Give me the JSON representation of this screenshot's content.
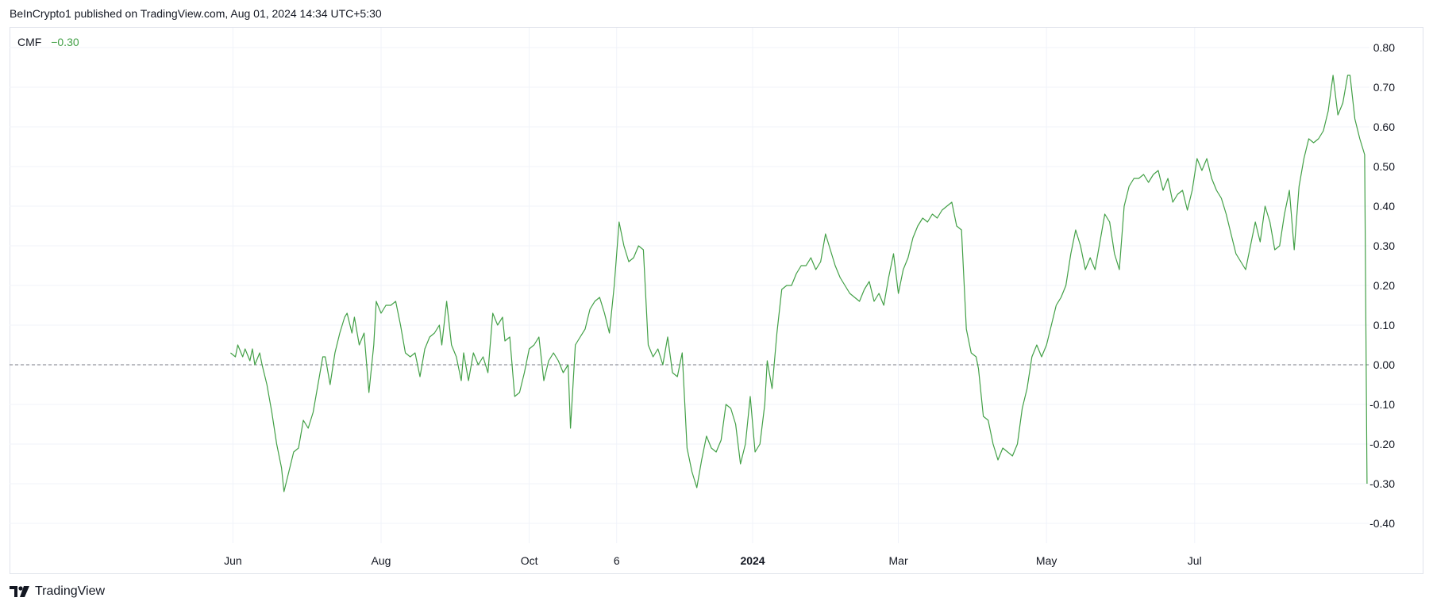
{
  "header": {
    "published_text": "BeInCrypto1 published on TradingView.com, Aug 01, 2024 14:34 UTC+5:30"
  },
  "indicator": {
    "name": "CMF",
    "value": "−0.30",
    "line_color": "#43a047"
  },
  "footer": {
    "brand": "TradingView"
  },
  "colors": {
    "line": "#43a047",
    "grid": "#f0f3fa",
    "zero_line": "#787b86",
    "text": "#131722"
  },
  "chart_data": {
    "type": "line",
    "title": "",
    "xlabel": "",
    "ylabel": "",
    "ylim": [
      -0.45,
      0.85
    ],
    "y_ticks": [
      "0.80",
      "0.70",
      "0.60",
      "0.50",
      "0.40",
      "0.30",
      "0.20",
      "0.10",
      "0.00",
      "-0.10",
      "-0.20",
      "-0.30",
      "-0.40"
    ],
    "x_ticks": [
      {
        "label": "Jun",
        "date": "2023-06-01",
        "bold": false
      },
      {
        "label": "Aug",
        "date": "2023-08-01",
        "bold": false
      },
      {
        "label": "Oct",
        "date": "2023-10-01",
        "bold": false
      },
      {
        "label": "6",
        "date": "2023-11-06",
        "bold": false
      },
      {
        "label": "2024",
        "date": "2024-01-01",
        "bold": true
      },
      {
        "label": "Mar",
        "date": "2024-03-01",
        "bold": false
      },
      {
        "label": "May",
        "date": "2024-05-01",
        "bold": false
      },
      {
        "label": "Jul",
        "date": "2024-07-01",
        "bold": false
      }
    ],
    "x_range": [
      "2023-03-01",
      "2024-09-11"
    ],
    "zero_line": "dashed",
    "grid": true,
    "series": [
      {
        "name": "CMF",
        "points": [
          [
            "2023-05-31",
            0.03
          ],
          [
            "2023-06-02",
            0.02
          ],
          [
            "2023-06-03",
            0.05
          ],
          [
            "2023-06-05",
            0.02
          ],
          [
            "2023-06-06",
            0.04
          ],
          [
            "2023-06-08",
            0.01
          ],
          [
            "2023-06-09",
            0.04
          ],
          [
            "2023-06-10",
            0.0
          ],
          [
            "2023-06-12",
            0.03
          ],
          [
            "2023-06-13",
            0.0
          ],
          [
            "2023-06-15",
            -0.05
          ],
          [
            "2023-06-17",
            -0.12
          ],
          [
            "2023-06-19",
            -0.2
          ],
          [
            "2023-06-21",
            -0.26
          ],
          [
            "2023-06-22",
            -0.32
          ],
          [
            "2023-06-24",
            -0.27
          ],
          [
            "2023-06-26",
            -0.22
          ],
          [
            "2023-06-28",
            -0.21
          ],
          [
            "2023-06-30",
            -0.14
          ],
          [
            "2023-07-02",
            -0.16
          ],
          [
            "2023-07-04",
            -0.12
          ],
          [
            "2023-07-06",
            -0.05
          ],
          [
            "2023-07-08",
            0.02
          ],
          [
            "2023-07-09",
            0.02
          ],
          [
            "2023-07-11",
            -0.05
          ],
          [
            "2023-07-13",
            0.03
          ],
          [
            "2023-07-15",
            0.08
          ],
          [
            "2023-07-17",
            0.12
          ],
          [
            "2023-07-18",
            0.13
          ],
          [
            "2023-07-20",
            0.08
          ],
          [
            "2023-07-21",
            0.12
          ],
          [
            "2023-07-23",
            0.05
          ],
          [
            "2023-07-25",
            0.08
          ],
          [
            "2023-07-27",
            -0.07
          ],
          [
            "2023-07-29",
            0.05
          ],
          [
            "2023-07-30",
            0.16
          ],
          [
            "2023-08-01",
            0.13
          ],
          [
            "2023-08-03",
            0.15
          ],
          [
            "2023-08-05",
            0.15
          ],
          [
            "2023-08-07",
            0.16
          ],
          [
            "2023-08-09",
            0.1
          ],
          [
            "2023-08-11",
            0.03
          ],
          [
            "2023-08-13",
            0.02
          ],
          [
            "2023-08-15",
            0.03
          ],
          [
            "2023-08-17",
            -0.03
          ],
          [
            "2023-08-19",
            0.04
          ],
          [
            "2023-08-21",
            0.07
          ],
          [
            "2023-08-23",
            0.08
          ],
          [
            "2023-08-25",
            0.1
          ],
          [
            "2023-08-26",
            0.05
          ],
          [
            "2023-08-28",
            0.16
          ],
          [
            "2023-08-30",
            0.05
          ],
          [
            "2023-09-01",
            0.02
          ],
          [
            "2023-09-03",
            -0.04
          ],
          [
            "2023-09-04",
            0.03
          ],
          [
            "2023-09-06",
            -0.04
          ],
          [
            "2023-09-08",
            0.03
          ],
          [
            "2023-09-10",
            0.0
          ],
          [
            "2023-09-12",
            0.02
          ],
          [
            "2023-09-14",
            -0.02
          ],
          [
            "2023-09-16",
            0.13
          ],
          [
            "2023-09-18",
            0.1
          ],
          [
            "2023-09-20",
            0.12
          ],
          [
            "2023-09-21",
            0.06
          ],
          [
            "2023-09-23",
            0.07
          ],
          [
            "2023-09-25",
            -0.08
          ],
          [
            "2023-09-27",
            -0.07
          ],
          [
            "2023-09-29",
            -0.02
          ],
          [
            "2023-10-01",
            0.04
          ],
          [
            "2023-10-03",
            0.05
          ],
          [
            "2023-10-05",
            0.07
          ],
          [
            "2023-10-07",
            -0.04
          ],
          [
            "2023-10-09",
            0.01
          ],
          [
            "2023-10-11",
            0.03
          ],
          [
            "2023-10-13",
            0.01
          ],
          [
            "2023-10-15",
            -0.02
          ],
          [
            "2023-10-17",
            -0.0
          ],
          [
            "2023-10-18",
            -0.16
          ],
          [
            "2023-10-20",
            0.05
          ],
          [
            "2023-10-22",
            0.07
          ],
          [
            "2023-10-24",
            0.09
          ],
          [
            "2023-10-26",
            0.14
          ],
          [
            "2023-10-28",
            0.16
          ],
          [
            "2023-10-30",
            0.17
          ],
          [
            "2023-11-01",
            0.13
          ],
          [
            "2023-11-03",
            0.08
          ],
          [
            "2023-11-05",
            0.2
          ],
          [
            "2023-11-07",
            0.36
          ],
          [
            "2023-11-09",
            0.3
          ],
          [
            "2023-11-11",
            0.26
          ],
          [
            "2023-11-13",
            0.27
          ],
          [
            "2023-11-15",
            0.3
          ],
          [
            "2023-11-17",
            0.29
          ],
          [
            "2023-11-19",
            0.05
          ],
          [
            "2023-11-21",
            0.02
          ],
          [
            "2023-11-23",
            0.04
          ],
          [
            "2023-11-25",
            0.0
          ],
          [
            "2023-11-27",
            0.07
          ],
          [
            "2023-11-29",
            -0.02
          ],
          [
            "2023-12-01",
            -0.03
          ],
          [
            "2023-12-03",
            0.03
          ],
          [
            "2023-12-05",
            -0.21
          ],
          [
            "2023-12-07",
            -0.27
          ],
          [
            "2023-12-09",
            -0.31
          ],
          [
            "2023-12-11",
            -0.24
          ],
          [
            "2023-12-13",
            -0.18
          ],
          [
            "2023-12-15",
            -0.21
          ],
          [
            "2023-12-17",
            -0.22
          ],
          [
            "2023-12-19",
            -0.19
          ],
          [
            "2023-12-21",
            -0.1
          ],
          [
            "2023-12-23",
            -0.11
          ],
          [
            "2023-12-25",
            -0.15
          ],
          [
            "2023-12-27",
            -0.25
          ],
          [
            "2023-12-29",
            -0.2
          ],
          [
            "2023-12-31",
            -0.08
          ],
          [
            "2024-01-02",
            -0.22
          ],
          [
            "2024-01-04",
            -0.2
          ],
          [
            "2024-01-06",
            -0.1
          ],
          [
            "2024-01-07",
            0.01
          ],
          [
            "2024-01-09",
            -0.06
          ],
          [
            "2024-01-11",
            0.08
          ],
          [
            "2024-01-13",
            0.19
          ],
          [
            "2024-01-15",
            0.2
          ],
          [
            "2024-01-17",
            0.2
          ],
          [
            "2024-01-19",
            0.23
          ],
          [
            "2024-01-21",
            0.25
          ],
          [
            "2024-01-23",
            0.25
          ],
          [
            "2024-01-25",
            0.27
          ],
          [
            "2024-01-27",
            0.24
          ],
          [
            "2024-01-29",
            0.26
          ],
          [
            "2024-01-31",
            0.33
          ],
          [
            "2024-02-02",
            0.29
          ],
          [
            "2024-02-04",
            0.25
          ],
          [
            "2024-02-06",
            0.22
          ],
          [
            "2024-02-08",
            0.2
          ],
          [
            "2024-02-10",
            0.18
          ],
          [
            "2024-02-12",
            0.17
          ],
          [
            "2024-02-14",
            0.16
          ],
          [
            "2024-02-16",
            0.19
          ],
          [
            "2024-02-18",
            0.21
          ],
          [
            "2024-02-20",
            0.16
          ],
          [
            "2024-02-22",
            0.18
          ],
          [
            "2024-02-24",
            0.15
          ],
          [
            "2024-02-26",
            0.22
          ],
          [
            "2024-02-28",
            0.28
          ],
          [
            "2024-03-01",
            0.18
          ],
          [
            "2024-03-03",
            0.24
          ],
          [
            "2024-03-05",
            0.27
          ],
          [
            "2024-03-07",
            0.32
          ],
          [
            "2024-03-09",
            0.35
          ],
          [
            "2024-03-11",
            0.37
          ],
          [
            "2024-03-13",
            0.36
          ],
          [
            "2024-03-15",
            0.38
          ],
          [
            "2024-03-17",
            0.37
          ],
          [
            "2024-03-19",
            0.39
          ],
          [
            "2024-03-21",
            0.4
          ],
          [
            "2024-03-23",
            0.41
          ],
          [
            "2024-03-25",
            0.35
          ],
          [
            "2024-03-27",
            0.34
          ],
          [
            "2024-03-29",
            0.09
          ],
          [
            "2024-03-31",
            0.03
          ],
          [
            "2024-04-02",
            0.02
          ],
          [
            "2024-04-03",
            -0.01
          ],
          [
            "2024-04-05",
            -0.13
          ],
          [
            "2024-04-07",
            -0.14
          ],
          [
            "2024-04-09",
            -0.2
          ],
          [
            "2024-04-11",
            -0.24
          ],
          [
            "2024-04-13",
            -0.21
          ],
          [
            "2024-04-15",
            -0.22
          ],
          [
            "2024-04-17",
            -0.23
          ],
          [
            "2024-04-19",
            -0.2
          ],
          [
            "2024-04-21",
            -0.11
          ],
          [
            "2024-04-23",
            -0.06
          ],
          [
            "2024-04-25",
            0.02
          ],
          [
            "2024-04-27",
            0.05
          ],
          [
            "2024-04-29",
            0.02
          ],
          [
            "2024-05-01",
            0.05
          ],
          [
            "2024-05-03",
            0.1
          ],
          [
            "2024-05-05",
            0.15
          ],
          [
            "2024-05-07",
            0.17
          ],
          [
            "2024-05-09",
            0.2
          ],
          [
            "2024-05-11",
            0.28
          ],
          [
            "2024-05-13",
            0.34
          ],
          [
            "2024-05-15",
            0.3
          ],
          [
            "2024-05-17",
            0.24
          ],
          [
            "2024-05-19",
            0.27
          ],
          [
            "2024-05-21",
            0.24
          ],
          [
            "2024-05-23",
            0.31
          ],
          [
            "2024-05-25",
            0.38
          ],
          [
            "2024-05-27",
            0.36
          ],
          [
            "2024-05-29",
            0.28
          ],
          [
            "2024-05-31",
            0.24
          ],
          [
            "2024-06-02",
            0.4
          ],
          [
            "2024-06-04",
            0.45
          ],
          [
            "2024-06-06",
            0.47
          ],
          [
            "2024-06-08",
            0.47
          ],
          [
            "2024-06-10",
            0.48
          ],
          [
            "2024-06-12",
            0.46
          ],
          [
            "2024-06-14",
            0.48
          ],
          [
            "2024-06-16",
            0.49
          ],
          [
            "2024-06-18",
            0.44
          ],
          [
            "2024-06-20",
            0.47
          ],
          [
            "2024-06-22",
            0.41
          ],
          [
            "2024-06-24",
            0.43
          ],
          [
            "2024-06-26",
            0.44
          ],
          [
            "2024-06-28",
            0.39
          ],
          [
            "2024-06-30",
            0.44
          ],
          [
            "2024-07-02",
            0.52
          ],
          [
            "2024-07-04",
            0.49
          ],
          [
            "2024-07-06",
            0.52
          ],
          [
            "2024-07-08",
            0.47
          ],
          [
            "2024-07-10",
            0.44
          ],
          [
            "2024-07-12",
            0.42
          ],
          [
            "2024-07-14",
            0.38
          ],
          [
            "2024-07-16",
            0.33
          ],
          [
            "2024-07-18",
            0.28
          ],
          [
            "2024-07-20",
            0.26
          ],
          [
            "2024-07-22",
            0.24
          ],
          [
            "2024-07-24",
            0.3
          ],
          [
            "2024-07-26",
            0.36
          ],
          [
            "2024-07-28",
            0.31
          ],
          [
            "2024-07-30",
            0.4
          ],
          [
            "2024-08-01",
            0.36
          ],
          [
            "2024-08-03",
            0.29
          ],
          [
            "2024-08-05",
            0.3
          ],
          [
            "2024-08-07",
            0.38
          ],
          [
            "2024-08-09",
            0.44
          ],
          [
            "2024-08-11",
            0.29
          ],
          [
            "2024-08-13",
            0.45
          ],
          [
            "2024-08-15",
            0.52
          ],
          [
            "2024-08-17",
            0.57
          ],
          [
            "2024-08-19",
            0.56
          ],
          [
            "2024-08-21",
            0.57
          ],
          [
            "2024-08-23",
            0.59
          ],
          [
            "2024-08-25",
            0.64
          ],
          [
            "2024-08-27",
            0.73
          ],
          [
            "2024-08-29",
            0.63
          ],
          [
            "2024-08-31",
            0.66
          ],
          [
            "2024-09-02",
            0.73
          ],
          [
            "2024-09-03",
            0.73
          ],
          [
            "2024-09-05",
            0.62
          ],
          [
            "2024-09-07",
            0.57
          ],
          [
            "2024-09-09",
            0.53
          ],
          [
            "2024-09-10",
            -0.3
          ]
        ]
      }
    ]
  }
}
